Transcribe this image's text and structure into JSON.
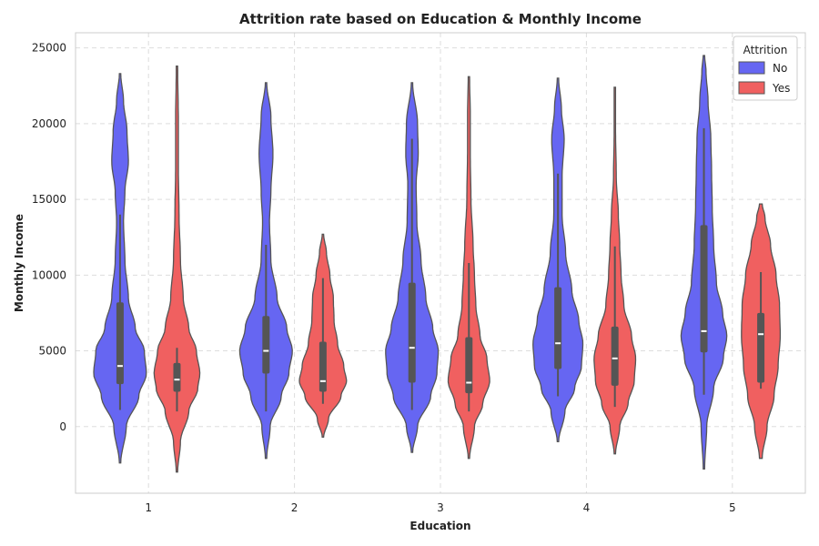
{
  "chart_data": {
    "type": "violin",
    "title": "Attrition rate based on Education & Monthly Income",
    "xlabel": "Education",
    "ylabel": "Monthly Income",
    "categories": [
      "1",
      "2",
      "3",
      "4",
      "5"
    ],
    "ylim": [
      -4400,
      26000
    ],
    "yticks": [
      0,
      5000,
      10000,
      15000,
      20000,
      25000
    ],
    "grid": true,
    "legend": {
      "title": "Attrition",
      "placement": "top-right"
    },
    "series": [
      {
        "name": "No",
        "color": "#6666f2",
        "violins": [
          {
            "category": "1",
            "extent": [
              -2400,
              23300
            ],
            "median": 4000,
            "q1": 2800,
            "q3": 8200,
            "whisker": [
              1100,
              14000
            ],
            "profile": [
              [
                -2400,
                0.01
              ],
              [
                0,
                0.09
              ],
              [
                2000,
                0.27
              ],
              [
                3500,
                0.38
              ],
              [
                5000,
                0.35
              ],
              [
                6500,
                0.22
              ],
              [
                8500,
                0.12
              ],
              [
                11000,
                0.07
              ],
              [
                13500,
                0.05
              ],
              [
                15500,
                0.07
              ],
              [
                17500,
                0.12
              ],
              [
                19500,
                0.1
              ],
              [
                21500,
                0.05
              ],
              [
                23300,
                0.01
              ]
            ]
          },
          {
            "category": "2",
            "extent": [
              -2100,
              22700
            ],
            "median": 5000,
            "q1": 3500,
            "q3": 7300,
            "whisker": [
              1000,
              12000
            ],
            "profile": [
              [
                -2100,
                0.01
              ],
              [
                0,
                0.06
              ],
              [
                2000,
                0.22
              ],
              [
                3500,
                0.33
              ],
              [
                5000,
                0.38
              ],
              [
                6500,
                0.3
              ],
              [
                8500,
                0.16
              ],
              [
                11000,
                0.07
              ],
              [
                13500,
                0.05
              ],
              [
                15500,
                0.07
              ],
              [
                18000,
                0.1
              ],
              [
                20500,
                0.07
              ],
              [
                22700,
                0.01
              ]
            ]
          },
          {
            "category": "3",
            "extent": [
              -1700,
              22700
            ],
            "median": 5200,
            "q1": 2900,
            "q3": 9500,
            "whisker": [
              1100,
              19000
            ],
            "profile": [
              [
                -1700,
                0.01
              ],
              [
                0,
                0.08
              ],
              [
                2000,
                0.27
              ],
              [
                3500,
                0.36
              ],
              [
                5000,
                0.38
              ],
              [
                6500,
                0.3
              ],
              [
                8500,
                0.2
              ],
              [
                11000,
                0.13
              ],
              [
                13500,
                0.07
              ],
              [
                16000,
                0.06
              ],
              [
                18000,
                0.09
              ],
              [
                20000,
                0.08
              ],
              [
                22700,
                0.01
              ]
            ]
          },
          {
            "category": "4",
            "extent": [
              -1000,
              23000
            ],
            "median": 5500,
            "q1": 3800,
            "q3": 9200,
            "whisker": [
              2000,
              16700
            ],
            "profile": [
              [
                -1000,
                0.01
              ],
              [
                1000,
                0.1
              ],
              [
                2500,
                0.24
              ],
              [
                4000,
                0.34
              ],
              [
                5500,
                0.36
              ],
              [
                7000,
                0.3
              ],
              [
                9000,
                0.2
              ],
              [
                11500,
                0.11
              ],
              [
                14000,
                0.06
              ],
              [
                16500,
                0.06
              ],
              [
                19000,
                0.09
              ],
              [
                21000,
                0.05
              ],
              [
                23000,
                0.01
              ]
            ]
          },
          {
            "category": "5",
            "extent": [
              -2800,
              24500
            ],
            "median": 6300,
            "q1": 4900,
            "q3": 13300,
            "whisker": [
              2100,
              19700
            ],
            "profile": [
              [
                -2800,
                0.01
              ],
              [
                0,
                0.04
              ],
              [
                2500,
                0.14
              ],
              [
                4500,
                0.28
              ],
              [
                6000,
                0.33
              ],
              [
                7500,
                0.27
              ],
              [
                9500,
                0.18
              ],
              [
                12000,
                0.14
              ],
              [
                14500,
                0.12
              ],
              [
                17000,
                0.11
              ],
              [
                19000,
                0.1
              ],
              [
                21500,
                0.06
              ],
              [
                23500,
                0.03
              ],
              [
                24500,
                0.01
              ]
            ]
          }
        ]
      },
      {
        "name": "Yes",
        "color": "#f06060",
        "violins": [
          {
            "category": "1",
            "extent": [
              -3000,
              23800
            ],
            "median": 3100,
            "q1": 2300,
            "q3": 4200,
            "whisker": [
              1000,
              5200
            ],
            "profile": [
              [
                -3000,
                0.01
              ],
              [
                -1000,
                0.05
              ],
              [
                1000,
                0.17
              ],
              [
                2500,
                0.3
              ],
              [
                3500,
                0.33
              ],
              [
                5000,
                0.28
              ],
              [
                6500,
                0.17
              ],
              [
                8500,
                0.09
              ],
              [
                11000,
                0.05
              ],
              [
                14000,
                0.03
              ],
              [
                17000,
                0.02
              ],
              [
                20000,
                0.02
              ],
              [
                23800,
                0.01
              ]
            ]
          },
          {
            "category": "2",
            "extent": [
              -700,
              12700
            ],
            "median": 3000,
            "q1": 2300,
            "q3": 5600,
            "whisker": [
              1500,
              9800
            ],
            "profile": [
              [
                -700,
                0.01
              ],
              [
                500,
                0.08
              ],
              [
                2000,
                0.26
              ],
              [
                3000,
                0.34
              ],
              [
                4000,
                0.3
              ],
              [
                5500,
                0.21
              ],
              [
                7000,
                0.16
              ],
              [
                8500,
                0.15
              ],
              [
                10000,
                0.1
              ],
              [
                11500,
                0.05
              ],
              [
                12700,
                0.01
              ]
            ]
          },
          {
            "category": "3",
            "extent": [
              -2100,
              23100
            ],
            "median": 2900,
            "q1": 2200,
            "q3": 5900,
            "whisker": [
              1000,
              10800
            ],
            "profile": [
              [
                -2100,
                0.01
              ],
              [
                0,
                0.08
              ],
              [
                1500,
                0.2
              ],
              [
                3000,
                0.3
              ],
              [
                4500,
                0.26
              ],
              [
                6000,
                0.16
              ],
              [
                8000,
                0.1
              ],
              [
                10000,
                0.08
              ],
              [
                12000,
                0.06
              ],
              [
                15000,
                0.03
              ],
              [
                18000,
                0.02
              ],
              [
                20500,
                0.02
              ],
              [
                23100,
                0.01
              ]
            ]
          },
          {
            "category": "4",
            "extent": [
              -1800,
              22400
            ],
            "median": 4500,
            "q1": 2700,
            "q3": 6600,
            "whisker": [
              1300,
              11900
            ],
            "profile": [
              [
                -1800,
                0.01
              ],
              [
                0,
                0.07
              ],
              [
                1500,
                0.19
              ],
              [
                3000,
                0.28
              ],
              [
                4500,
                0.3
              ],
              [
                6000,
                0.24
              ],
              [
                8000,
                0.13
              ],
              [
                10000,
                0.09
              ],
              [
                12000,
                0.07
              ],
              [
                14000,
                0.05
              ],
              [
                16500,
                0.02
              ],
              [
                19500,
                0.01
              ],
              [
                22400,
                0.01
              ]
            ]
          },
          {
            "category": "5",
            "extent": [
              -2100,
              14700
            ],
            "median": 6100,
            "q1": 2900,
            "q3": 7500,
            "whisker": [
              2500,
              10200
            ],
            "profile": [
              [
                -2100,
                0.02
              ],
              [
                0,
                0.09
              ],
              [
                2000,
                0.19
              ],
              [
                4000,
                0.25
              ],
              [
                6000,
                0.28
              ],
              [
                8000,
                0.27
              ],
              [
                10000,
                0.22
              ],
              [
                12000,
                0.14
              ],
              [
                13800,
                0.06
              ],
              [
                14700,
                0.02
              ]
            ]
          }
        ]
      }
    ]
  }
}
